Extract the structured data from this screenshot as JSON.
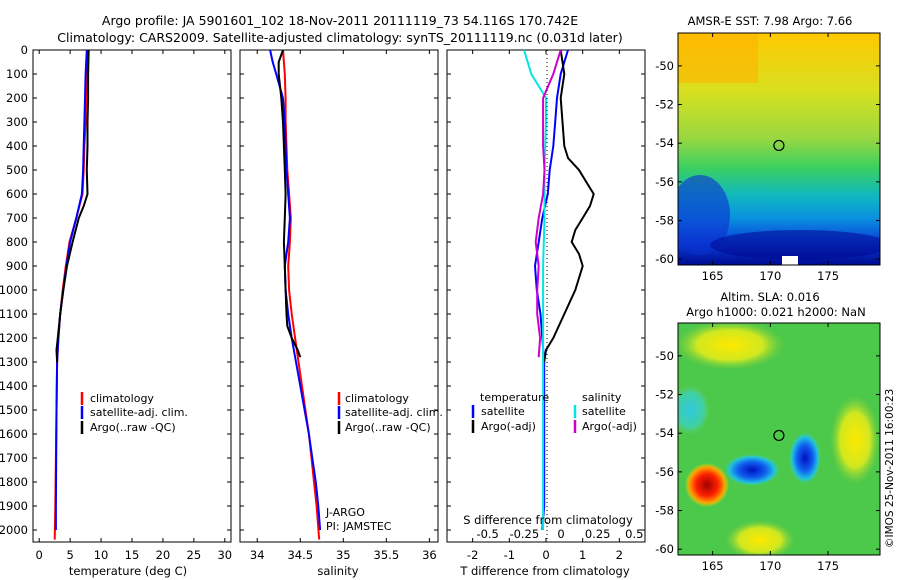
{
  "header": {
    "title_line1": "Argo profile: JA 5901601_102 18-Nov-2011 20111119_73 54.116S 170.742E",
    "title_line2": "Climatology: CARS2009. Satellite-adjusted climatology: synTS_20111119.nc (0.031d later)"
  },
  "colors": {
    "climatology": "#ff0000",
    "satellite": "#0000ff",
    "argo": "#000000",
    "salinity_satellite": "#00e5e5",
    "salinity_argo": "#cc00cc"
  },
  "depth_ticks": [
    "0",
    "100",
    "200",
    "300",
    "400",
    "500",
    "600",
    "700",
    "800",
    "900",
    "1000",
    "1100",
    "1200",
    "1300",
    "1400",
    "1500",
    "1600",
    "1700",
    "1800",
    "1900",
    "2000"
  ],
  "chart_data": [
    {
      "type": "line",
      "id": "temperature",
      "xlabel": "temperature (deg C)",
      "ylabel": "",
      "xlim": [
        -1,
        31
      ],
      "ylim": [
        2050,
        0
      ],
      "x_ticks": [
        "0",
        "5",
        "10",
        "15",
        "20",
        "25",
        "30"
      ],
      "legend": [
        "climatology",
        "satellite-adj. clim.",
        "Argo(..raw -QC)"
      ],
      "series": [
        {
          "name": "climatology",
          "depth": [
            0,
            100,
            200,
            300,
            400,
            500,
            600,
            700,
            800,
            900,
            1000,
            1100,
            1200,
            1300,
            1500,
            1700,
            1900,
            2040
          ],
          "values": [
            7.9,
            7.7,
            7.6,
            7.5,
            7.3,
            7.2,
            7.0,
            6.0,
            4.9,
            4.3,
            3.8,
            3.4,
            3.1,
            2.9,
            2.8,
            2.7,
            2.6,
            2.5
          ]
        },
        {
          "name": "satellite-adj. clim.",
          "depth": [
            0,
            100,
            200,
            300,
            400,
            500,
            600,
            700,
            800,
            900,
            1000,
            1100,
            1200,
            1300,
            1500,
            1700,
            1900,
            2000
          ],
          "values": [
            7.7,
            7.5,
            7.4,
            7.3,
            7.2,
            7.1,
            6.9,
            6.0,
            5.0,
            4.4,
            3.9,
            3.4,
            3.1,
            2.9,
            2.8,
            2.75,
            2.7,
            2.7
          ]
        },
        {
          "name": "Argo(..raw -QC)",
          "depth": [
            0,
            100,
            200,
            300,
            400,
            500,
            600,
            650,
            700,
            800,
            900,
            1000,
            1100,
            1200,
            1250,
            1300
          ],
          "values": [
            8.0,
            7.9,
            7.9,
            7.8,
            7.8,
            7.7,
            7.8,
            7.2,
            6.4,
            5.4,
            4.5,
            3.9,
            3.4,
            3.0,
            2.8,
            2.9
          ]
        }
      ]
    },
    {
      "type": "line",
      "id": "salinity",
      "xlabel": "salinity",
      "ylabel": "",
      "xlim": [
        33.8,
        36.1
      ],
      "ylim": [
        2050,
        0
      ],
      "x_ticks": [
        "34",
        "34.5",
        "35",
        "35.5",
        "36"
      ],
      "legend": [
        "climatology",
        "satellite-adj. clim.",
        "Argo(..raw -QC)"
      ],
      "annotations": [
        "J-ARGO",
        "PI: JAMSTEC"
      ],
      "series": [
        {
          "name": "climatology",
          "depth": [
            0,
            100,
            200,
            300,
            400,
            500,
            600,
            700,
            800,
            900,
            1000,
            1100,
            1200,
            1300,
            1400,
            1500,
            1600,
            1700,
            1800,
            1900,
            2040
          ],
          "values": [
            34.3,
            34.32,
            34.33,
            34.33,
            34.34,
            34.35,
            34.37,
            34.39,
            34.38,
            34.36,
            34.37,
            34.4,
            34.44,
            34.48,
            34.52,
            34.56,
            34.6,
            34.63,
            34.66,
            34.69,
            34.72
          ]
        },
        {
          "name": "satellite-adj. clim.",
          "depth": [
            0,
            50,
            100,
            150,
            200,
            300,
            400,
            500,
            600,
            700,
            800,
            900,
            1000,
            1100,
            1200,
            1300,
            1400,
            1500,
            1600,
            1700,
            1800,
            1900,
            2000
          ],
          "values": [
            34.15,
            34.18,
            34.22,
            34.26,
            34.3,
            34.32,
            34.33,
            34.34,
            34.36,
            34.38,
            34.36,
            34.32,
            34.33,
            34.36,
            34.4,
            34.45,
            34.5,
            34.55,
            34.6,
            34.64,
            34.68,
            34.71,
            34.73
          ]
        },
        {
          "name": "Argo(..raw -QC)",
          "depth": [
            0,
            50,
            100,
            200,
            300,
            400,
            500,
            600,
            700,
            800,
            900,
            1000,
            1100,
            1150,
            1200,
            1250,
            1280
          ],
          "values": [
            34.3,
            34.25,
            34.25,
            34.28,
            34.3,
            34.31,
            34.32,
            34.33,
            34.32,
            34.31,
            34.32,
            34.33,
            34.34,
            34.35,
            34.4,
            34.47,
            34.5
          ]
        }
      ]
    },
    {
      "type": "line",
      "id": "difference",
      "xlabel": "T difference from climatology",
      "xlabel2": "S difference from climatology",
      "ylabel": "",
      "xlim": [
        -2.7,
        2.7
      ],
      "ylim": [
        2050,
        0
      ],
      "x_ticks": [
        "-2",
        "-1",
        "0",
        "1",
        "2"
      ],
      "x_ticks_top": [
        "-0.5",
        "-0.25",
        "0",
        "0.25",
        "0.5"
      ],
      "legend_headers": [
        "temperature",
        "salinity"
      ],
      "legend": [
        "satellite",
        "Argo(-adj)",
        "satellite",
        "Argo(-adj)"
      ],
      "series": [
        {
          "name": "satellite",
          "quantity": "temperature",
          "depth": [
            0,
            100,
            200,
            300,
            400,
            500,
            600,
            700,
            800,
            900,
            1000,
            1100,
            1200,
            1300,
            1500,
            1700,
            1900,
            2000
          ],
          "values": [
            0.6,
            0.4,
            0.3,
            0.25,
            0.2,
            0.1,
            0.05,
            -0.1,
            -0.2,
            -0.3,
            -0.25,
            -0.15,
            -0.1,
            -0.05,
            -0.05,
            -0.05,
            -0.05,
            -0.1
          ]
        },
        {
          "name": "Argo(-adj)",
          "quantity": "temperature",
          "depth": [
            0,
            100,
            200,
            300,
            400,
            450,
            500,
            550,
            600,
            650,
            700,
            750,
            800,
            850,
            900,
            1000,
            1100,
            1200,
            1250,
            1300
          ],
          "values": [
            0.4,
            0.5,
            0.4,
            0.45,
            0.5,
            0.6,
            0.9,
            1.1,
            1.3,
            1.2,
            1.0,
            0.8,
            0.7,
            0.9,
            1.0,
            0.8,
            0.5,
            0.2,
            0.0,
            -0.05
          ]
        },
        {
          "name": "satellite",
          "quantity": "salinity",
          "depth": [
            0,
            100,
            200,
            300,
            500,
            700,
            900,
            1100,
            1300,
            1500,
            1700,
            1900,
            2000
          ],
          "values": [
            -0.15,
            -0.1,
            0.0,
            0.0,
            -0.01,
            -0.01,
            -0.02,
            -0.02,
            -0.02,
            -0.02,
            -0.02,
            -0.02,
            -0.02
          ]
        },
        {
          "name": "Argo(-adj)",
          "quantity": "salinity",
          "depth": [
            0,
            100,
            200,
            300,
            400,
            500,
            600,
            700,
            800,
            900,
            1000,
            1100,
            1200,
            1280
          ],
          "values": [
            0.1,
            0.05,
            -0.02,
            -0.02,
            -0.02,
            -0.01,
            -0.02,
            -0.05,
            -0.07,
            -0.05,
            -0.06,
            -0.06,
            -0.04,
            -0.05
          ]
        }
      ]
    },
    {
      "type": "heatmap",
      "id": "sst-map",
      "title": "AMSR-E SST: 7.98 Argo: 7.66",
      "xlim": [
        162,
        179.5
      ],
      "ylim": [
        -60.3,
        -48.3
      ],
      "x_ticks": [
        "165",
        "170",
        "175"
      ],
      "y_ticks": [
        "-50",
        "-52",
        "-54",
        "-56",
        "-58",
        "-60"
      ],
      "marker": {
        "lon": 170.742,
        "lat": -54.116
      }
    },
    {
      "type": "heatmap",
      "id": "sla-map",
      "title": "Altim. SLA: 0.016",
      "subtitle": "Argo h1000: 0.021 h2000: NaN",
      "xlim": [
        162,
        179.5
      ],
      "ylim": [
        -60.3,
        -48.3
      ],
      "x_ticks": [
        "165",
        "170",
        "175"
      ],
      "y_ticks": [
        "-50",
        "-52",
        "-54",
        "-56",
        "-58",
        "-60"
      ],
      "marker": {
        "lon": 170.742,
        "lat": -54.116
      }
    }
  ],
  "watermark": "©IMOS 25-Nov-2011 16:00:23"
}
